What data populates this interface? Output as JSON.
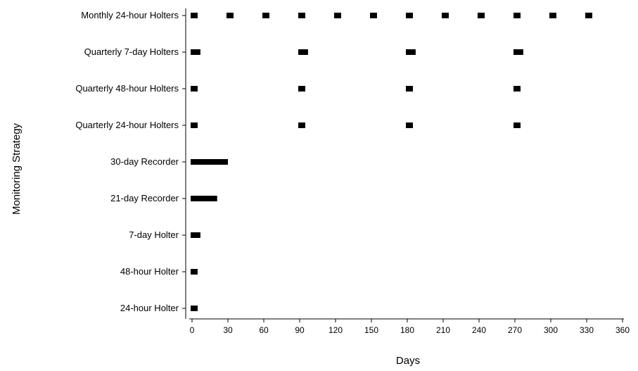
{
  "chart_data": {
    "type": "timeline",
    "title": "",
    "xlabel": "Days",
    "ylabel": "Monitoring Strategy",
    "xlim": [
      0,
      360
    ],
    "xticks": [
      0,
      30,
      60,
      90,
      120,
      150,
      180,
      210,
      240,
      270,
      300,
      330,
      360
    ],
    "grid": false,
    "categories": [
      "Monthly 24-hour Holters",
      "Quarterly 7-day Holters",
      "Quarterly 48-hour Holters",
      "Quarterly 24-hour Holters",
      "30-day Recorder",
      "21-day Recorder",
      "7-day Holter",
      "48-hour Holter",
      "24-hour Holter"
    ],
    "series": [
      {
        "category": "Monthly 24-hour Holters",
        "duration_days": 1,
        "start_days": [
          0,
          30,
          60,
          90,
          120,
          150,
          180,
          210,
          240,
          270,
          300,
          330
        ]
      },
      {
        "category": "Quarterly 7-day Holters",
        "duration_days": 7,
        "start_days": [
          0,
          90,
          180,
          270
        ]
      },
      {
        "category": "Quarterly 48-hour Holters",
        "duration_days": 2,
        "start_days": [
          0,
          90,
          180,
          270
        ]
      },
      {
        "category": "Quarterly 24-hour Holters",
        "duration_days": 1,
        "start_days": [
          0,
          90,
          180,
          270
        ]
      },
      {
        "category": "30-day Recorder",
        "duration_days": 30,
        "start_days": [
          0
        ]
      },
      {
        "category": "21-day Recorder",
        "duration_days": 21,
        "start_days": [
          0
        ]
      },
      {
        "category": "7-day Holter",
        "duration_days": 7,
        "start_days": [
          0
        ]
      },
      {
        "category": "48-hour Holter",
        "duration_days": 2,
        "start_days": [
          0
        ]
      },
      {
        "category": "24-hour Holter",
        "duration_days": 1,
        "start_days": [
          0
        ]
      }
    ],
    "mark_color": "#000000",
    "axis_color": "#000000"
  }
}
